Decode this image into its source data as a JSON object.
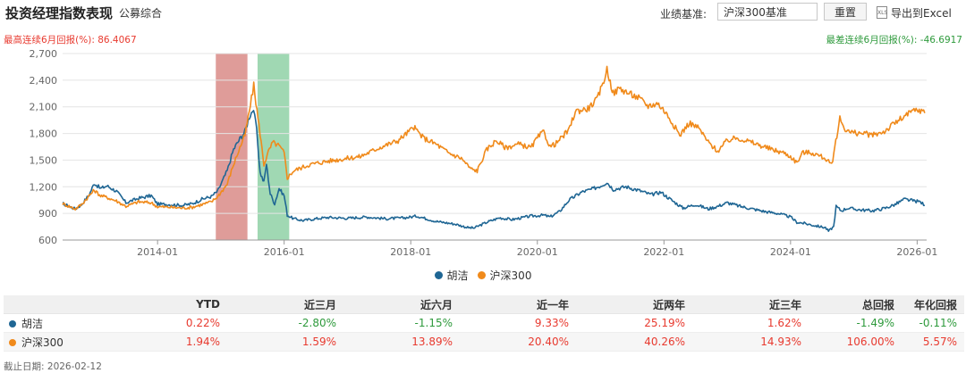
{
  "header": {
    "title": "投资经理指数表现",
    "subtitle": "公募综合",
    "benchmark_label": "业绩基准:",
    "benchmark_value": "沪深300基准",
    "reset_label": "重置",
    "export_label": "导出到Excel",
    "export_icon": "excel-icon"
  },
  "stats": {
    "max_label": "最高连续6月回报(%):",
    "max_value": "86.4067",
    "min_label": "最差连续6月回报(%):",
    "min_value": "-46.6917"
  },
  "chart_data": {
    "type": "line",
    "title": "",
    "xlabel": "",
    "ylabel": "",
    "ylim": [
      600,
      2700
    ],
    "xlim": [
      2012.5,
      2026.15
    ],
    "y_ticks": [
      600,
      900,
      1200,
      1500,
      1800,
      2100,
      2400,
      2700
    ],
    "y_tick_labels": [
      "600",
      "900",
      "1,200",
      "1,500",
      "1,800",
      "2,100",
      "2,400",
      "2,700"
    ],
    "x_ticks": [
      2014.0,
      2016.0,
      2018.0,
      2020.0,
      2022.0,
      2024.0,
      2026.0
    ],
    "x_tick_labels": [
      "2014-01",
      "2016-01",
      "2018-01",
      "2020-01",
      "2022-01",
      "2024-01",
      "2026-01"
    ],
    "highlight_bands": [
      {
        "type": "max",
        "start": 2014.92,
        "end": 2015.42,
        "color": "#d98b87"
      },
      {
        "type": "min",
        "start": 2015.58,
        "end": 2016.08,
        "color": "#8fd1a6"
      }
    ],
    "series": [
      {
        "name": "胡洁",
        "color": "#1f6694",
        "points": [
          [
            2012.5,
            1010
          ],
          [
            2012.7,
            950
          ],
          [
            2012.8,
            1000
          ],
          [
            2012.92,
            1110
          ],
          [
            2013.0,
            1240
          ],
          [
            2013.1,
            1180
          ],
          [
            2013.2,
            1210
          ],
          [
            2013.35,
            1150
          ],
          [
            2013.5,
            1020
          ],
          [
            2013.7,
            1070
          ],
          [
            2013.9,
            1100
          ],
          [
            2014.0,
            1005
          ],
          [
            2014.2,
            1000
          ],
          [
            2014.4,
            990
          ],
          [
            2014.55,
            1010
          ],
          [
            2014.7,
            1060
          ],
          [
            2014.85,
            1090
          ],
          [
            2014.95,
            1150
          ],
          [
            2015.1,
            1380
          ],
          [
            2015.2,
            1620
          ],
          [
            2015.3,
            1740
          ],
          [
            2015.38,
            1820
          ],
          [
            2015.45,
            1990
          ],
          [
            2015.5,
            2060
          ],
          [
            2015.55,
            1950
          ],
          [
            2015.58,
            1710
          ],
          [
            2015.62,
            1360
          ],
          [
            2015.68,
            1250
          ],
          [
            2015.72,
            1460
          ],
          [
            2015.78,
            1120
          ],
          [
            2015.85,
            1010
          ],
          [
            2015.92,
            1180
          ],
          [
            2016.0,
            1100
          ],
          [
            2016.05,
            880
          ],
          [
            2016.15,
            840
          ],
          [
            2016.3,
            820
          ],
          [
            2016.5,
            840
          ],
          [
            2016.7,
            855
          ],
          [
            2017.0,
            845
          ],
          [
            2017.3,
            860
          ],
          [
            2017.6,
            840
          ],
          [
            2017.9,
            850
          ],
          [
            2018.1,
            870
          ],
          [
            2018.4,
            810
          ],
          [
            2018.7,
            780
          ],
          [
            2018.9,
            740
          ],
          [
            2019.0,
            735
          ],
          [
            2019.2,
            800
          ],
          [
            2019.4,
            850
          ],
          [
            2019.6,
            830
          ],
          [
            2019.9,
            870
          ],
          [
            2020.1,
            880
          ],
          [
            2020.2,
            860
          ],
          [
            2020.35,
            920
          ],
          [
            2020.5,
            1050
          ],
          [
            2020.7,
            1140
          ],
          [
            2020.85,
            1170
          ],
          [
            2021.0,
            1210
          ],
          [
            2021.1,
            1250
          ],
          [
            2021.2,
            1170
          ],
          [
            2021.4,
            1200
          ],
          [
            2021.6,
            1160
          ],
          [
            2021.8,
            1110
          ],
          [
            2021.95,
            1140
          ],
          [
            2022.1,
            1060
          ],
          [
            2022.3,
            960
          ],
          [
            2022.5,
            1000
          ],
          [
            2022.7,
            950
          ],
          [
            2022.85,
            980
          ],
          [
            2023.0,
            1020
          ],
          [
            2023.2,
            980
          ],
          [
            2023.4,
            950
          ],
          [
            2023.6,
            920
          ],
          [
            2023.8,
            900
          ],
          [
            2024.0,
            860
          ],
          [
            2024.1,
            800
          ],
          [
            2024.2,
            790
          ],
          [
            2024.4,
            760
          ],
          [
            2024.55,
            740
          ],
          [
            2024.6,
            700
          ],
          [
            2024.68,
            750
          ],
          [
            2024.72,
            980
          ],
          [
            2024.8,
            930
          ],
          [
            2024.9,
            960
          ],
          [
            2025.1,
            940
          ],
          [
            2025.3,
            930
          ],
          [
            2025.5,
            960
          ],
          [
            2025.65,
            1000
          ],
          [
            2025.8,
            1060
          ],
          [
            2025.95,
            1040
          ],
          [
            2026.05,
            1030
          ],
          [
            2026.12,
            990
          ]
        ]
      },
      {
        "name": "沪深300",
        "color": "#f08a1b",
        "points": [
          [
            2012.5,
            1010
          ],
          [
            2012.7,
            950
          ],
          [
            2012.8,
            1000
          ],
          [
            2012.92,
            1100
          ],
          [
            2013.0,
            1160
          ],
          [
            2013.1,
            1100
          ],
          [
            2013.2,
            1080
          ],
          [
            2013.35,
            1040
          ],
          [
            2013.5,
            980
          ],
          [
            2013.7,
            1030
          ],
          [
            2013.9,
            1020
          ],
          [
            2014.0,
            975
          ],
          [
            2014.2,
            970
          ],
          [
            2014.4,
            960
          ],
          [
            2014.55,
            970
          ],
          [
            2014.7,
            1000
          ],
          [
            2014.85,
            1030
          ],
          [
            2014.95,
            1090
          ],
          [
            2015.1,
            1230
          ],
          [
            2015.2,
            1450
          ],
          [
            2015.3,
            1640
          ],
          [
            2015.38,
            1780
          ],
          [
            2015.45,
            2050
          ],
          [
            2015.52,
            2340
          ],
          [
            2015.57,
            2060
          ],
          [
            2015.62,
            1800
          ],
          [
            2015.68,
            1450
          ],
          [
            2015.75,
            1590
          ],
          [
            2015.82,
            1700
          ],
          [
            2015.92,
            1660
          ],
          [
            2016.0,
            1580
          ],
          [
            2016.05,
            1300
          ],
          [
            2016.15,
            1380
          ],
          [
            2016.4,
            1450
          ],
          [
            2016.7,
            1490
          ],
          [
            2016.9,
            1510
          ],
          [
            2017.2,
            1540
          ],
          [
            2017.5,
            1640
          ],
          [
            2017.8,
            1720
          ],
          [
            2017.95,
            1810
          ],
          [
            2018.05,
            1870
          ],
          [
            2018.2,
            1750
          ],
          [
            2018.4,
            1680
          ],
          [
            2018.6,
            1580
          ],
          [
            2018.8,
            1520
          ],
          [
            2018.95,
            1400
          ],
          [
            2019.05,
            1380
          ],
          [
            2019.2,
            1620
          ],
          [
            2019.35,
            1720
          ],
          [
            2019.5,
            1640
          ],
          [
            2019.7,
            1680
          ],
          [
            2019.9,
            1640
          ],
          [
            2020.0,
            1750
          ],
          [
            2020.1,
            1820
          ],
          [
            2020.2,
            1650
          ],
          [
            2020.3,
            1690
          ],
          [
            2020.5,
            1840
          ],
          [
            2020.6,
            2050
          ],
          [
            2020.8,
            2080
          ],
          [
            2020.95,
            2190
          ],
          [
            2021.05,
            2400
          ],
          [
            2021.1,
            2520
          ],
          [
            2021.2,
            2250
          ],
          [
            2021.3,
            2310
          ],
          [
            2021.45,
            2250
          ],
          [
            2021.6,
            2200
          ],
          [
            2021.75,
            2110
          ],
          [
            2021.9,
            2140
          ],
          [
            2022.0,
            2060
          ],
          [
            2022.1,
            1960
          ],
          [
            2022.25,
            1780
          ],
          [
            2022.4,
            1920
          ],
          [
            2022.55,
            1860
          ],
          [
            2022.7,
            1700
          ],
          [
            2022.85,
            1600
          ],
          [
            2023.0,
            1720
          ],
          [
            2023.15,
            1750
          ],
          [
            2023.3,
            1720
          ],
          [
            2023.5,
            1670
          ],
          [
            2023.7,
            1620
          ],
          [
            2023.9,
            1580
          ],
          [
            2024.0,
            1540
          ],
          [
            2024.1,
            1470
          ],
          [
            2024.2,
            1590
          ],
          [
            2024.35,
            1580
          ],
          [
            2024.55,
            1520
          ],
          [
            2024.65,
            1440
          ],
          [
            2024.7,
            1650
          ],
          [
            2024.78,
            1970
          ],
          [
            2024.85,
            1860
          ],
          [
            2024.95,
            1810
          ],
          [
            2025.15,
            1800
          ],
          [
            2025.3,
            1780
          ],
          [
            2025.5,
            1830
          ],
          [
            2025.65,
            1920
          ],
          [
            2025.8,
            1990
          ],
          [
            2025.95,
            2060
          ],
          [
            2026.05,
            2060
          ],
          [
            2026.12,
            2030
          ]
        ]
      }
    ]
  },
  "legend": {
    "items": [
      {
        "name": "胡洁",
        "color": "#1f6694"
      },
      {
        "name": "沪深300",
        "color": "#f08a1b"
      }
    ]
  },
  "table": {
    "headers": [
      "",
      "YTD",
      "近三月",
      "近六月",
      "近一年",
      "近两年",
      "近三年",
      "总回报",
      "年化回报"
    ],
    "rows": [
      {
        "name": "胡洁",
        "color": "#1f6694",
        "values": [
          "0.22%",
          "-2.80%",
          "-1.15%",
          "9.33%",
          "25.19%",
          "1.62%",
          "-1.49%",
          "-0.11%"
        ]
      },
      {
        "name": "沪深300",
        "color": "#f08a1b",
        "values": [
          "1.94%",
          "1.59%",
          "13.89%",
          "20.40%",
          "40.26%",
          "14.93%",
          "106.00%",
          "5.57%"
        ]
      }
    ]
  },
  "footer": {
    "date_label": "截止日期:",
    "date_value": "2026-02-12"
  }
}
